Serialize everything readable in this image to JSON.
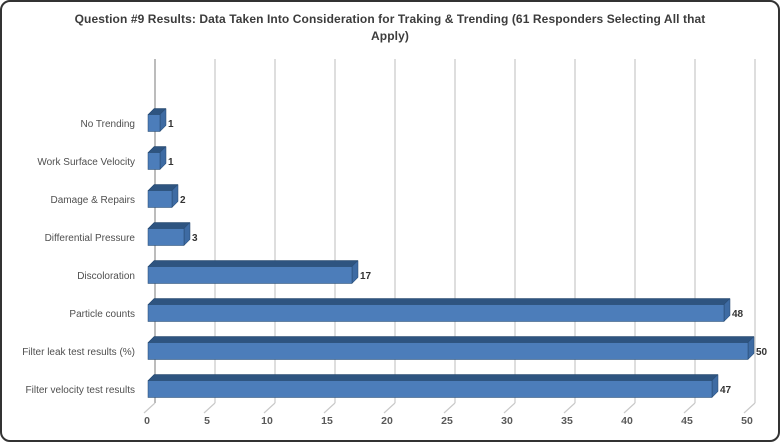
{
  "window": {
    "background": "#ffffff",
    "border_color": "#333333"
  },
  "chart_data": {
    "type": "bar",
    "orientation": "horizontal",
    "title": "Question #9 Results: Data Taken Into Consideration for Traking & Trending (61 Responders Selecting All that Apply)",
    "categories": [
      "No Trending",
      "Work Surface Velocity",
      "Damage & Repairs",
      "Differential Pressure",
      "Discoloration",
      "Particle counts",
      "Filter leak test results (%)",
      "Filter velocity test results"
    ],
    "values": [
      1,
      1,
      2,
      3,
      17,
      48,
      50,
      47
    ],
    "data_labels": [
      "1",
      "1",
      "2",
      "3",
      "17",
      "48",
      "50",
      "47"
    ],
    "x_ticks": [
      "0",
      "5",
      "10",
      "15",
      "20",
      "25",
      "30",
      "35",
      "40",
      "45",
      "50"
    ],
    "xlim": [
      0,
      50
    ],
    "xlabel": "",
    "ylabel": "",
    "grid": true,
    "style_3d": true,
    "legend": false,
    "colors": {
      "bar_front": "#4C7DBA",
      "bar_top": "#2E5480",
      "bar_side": "#3E6BA3",
      "bar_edge": "#24466B",
      "gridline": "#C9C9C9",
      "axis_line": "#ACACAC",
      "title_text": "#3C3C3C",
      "category_text": "#4F4F4F",
      "tick_text": "#595959",
      "value_text": "#333333"
    }
  }
}
